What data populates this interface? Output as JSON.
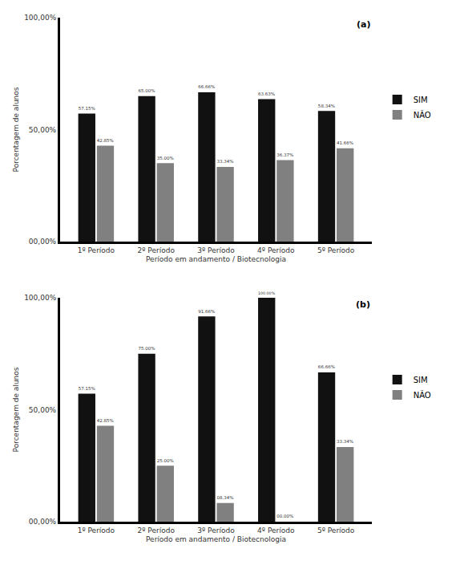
{
  "chart_data": [
    {
      "type": "bar",
      "annotations": [
        "(a)"
      ],
      "x_label": "Período em andamento / Biotecnologia",
      "y_label": "Porcentagem de alunos",
      "categories": [
        "1º Período",
        "2º Período",
        "3º Período",
        "4º Período",
        "5º Período"
      ],
      "series": [
        {
          "name": "SIM",
          "color": "#111111",
          "values": [
            57.15,
            65.0,
            66.66,
            63.63,
            58.34
          ],
          "value_labels": [
            "57.15%",
            "65.00%",
            "66.66%",
            "63.63%",
            "58.34%"
          ]
        },
        {
          "name": "NÃO",
          "color": "#808080",
          "values": [
            42.85,
            35.0,
            33.34,
            36.37,
            41.66
          ],
          "value_labels": [
            "42.85%",
            "35.00%",
            "33.34%",
            "36.37%",
            "41.66%"
          ]
        }
      ],
      "ylim": [
        0,
        100
      ],
      "yticks": [
        {
          "value": 0,
          "label": "00,00%"
        },
        {
          "value": 50,
          "label": "50,00%"
        },
        {
          "value": 100,
          "label": "100,00%"
        }
      ],
      "grid": false,
      "legend": "right",
      "data_labels": true
    },
    {
      "type": "bar",
      "annotations": [
        "(b)"
      ],
      "x_label": "Período em andamento / Biotecnologia",
      "y_label": "Porcentagem de alunos",
      "categories": [
        "1º Período",
        "2º Período",
        "3º Período",
        "4º Período",
        "5º Período"
      ],
      "series": [
        {
          "name": "SIM",
          "color": "#111111",
          "values": [
            57.15,
            75.0,
            91.66,
            100.0,
            66.66
          ],
          "value_labels": [
            "57.15%",
            "75.00%",
            "91.66%",
            "100.00%",
            "66.66%"
          ]
        },
        {
          "name": "NÃO",
          "color": "#808080",
          "values": [
            42.85,
            25.0,
            8.34,
            0.0,
            33.34
          ],
          "value_labels": [
            "42.85%",
            "25.00%",
            "08.34%",
            "00.00%",
            "33.34%"
          ]
        }
      ],
      "ylim": [
        0,
        100
      ],
      "yticks": [
        {
          "value": 0,
          "label": "00,00%"
        },
        {
          "value": 50,
          "label": "50,00%"
        },
        {
          "value": 100,
          "label": "100,00%"
        }
      ],
      "grid": false,
      "legend": "right",
      "data_labels": true
    }
  ]
}
